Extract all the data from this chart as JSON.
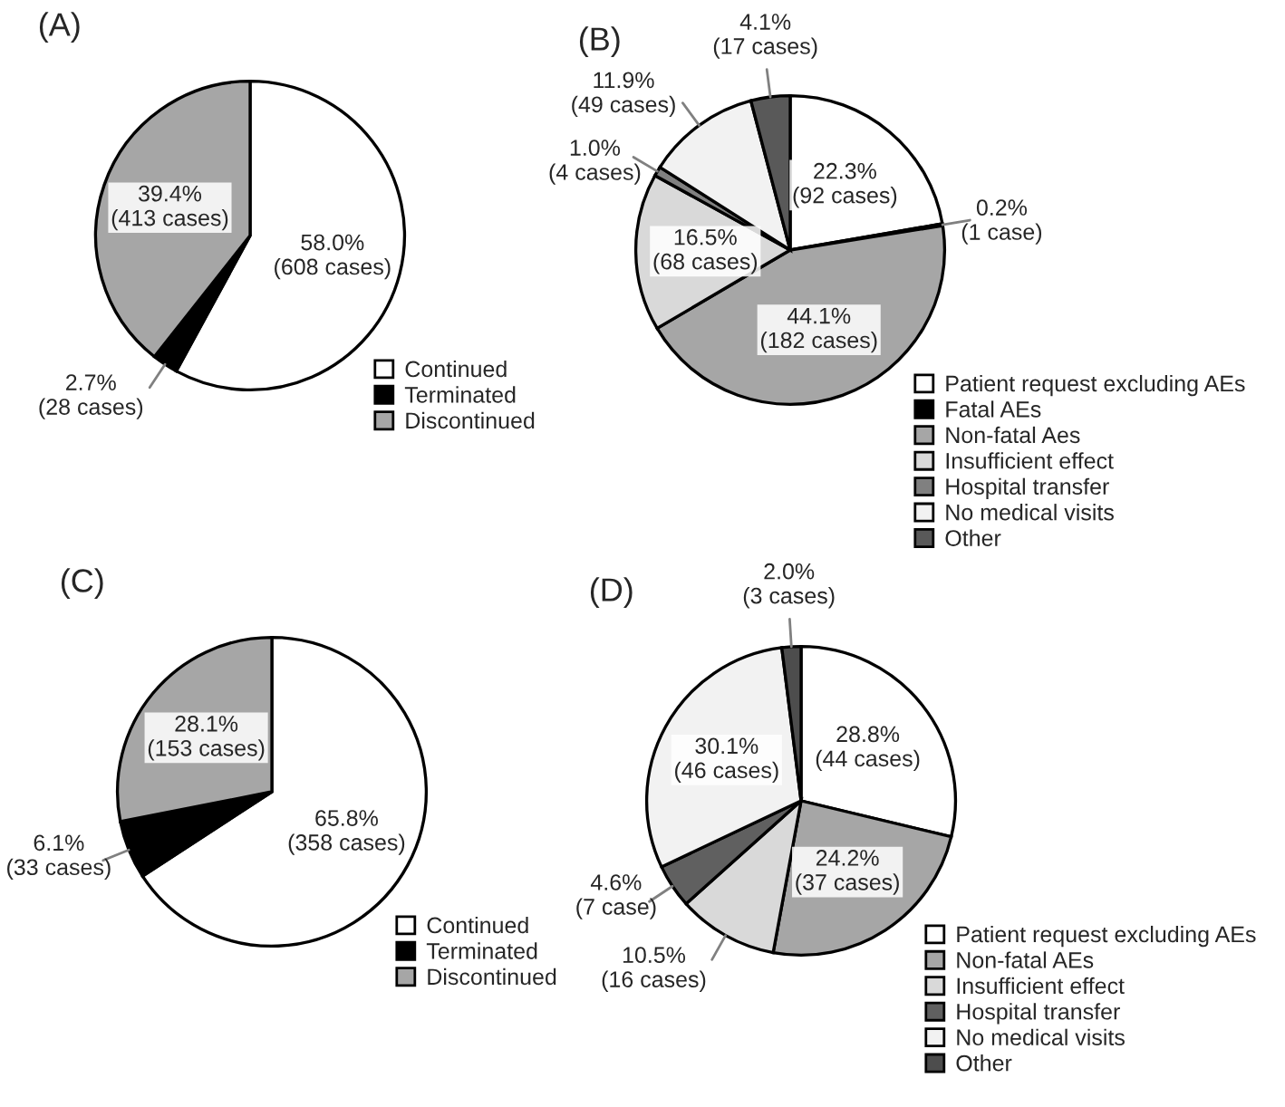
{
  "chart_data": [
    {
      "type": "pie",
      "title": "(A)",
      "categories": [
        "Continued",
        "Terminated",
        "Discontinued"
      ],
      "values": [
        58.0,
        2.7,
        39.4
      ],
      "colors": [
        "#ffffff",
        "#000000",
        "#a6a6a6"
      ],
      "value_labels": [
        "58.0%\n(608 cases)",
        "2.7%\n(28 cases)",
        "39.4%\n(413 cases)"
      ],
      "legend": "bottom right"
    },
    {
      "type": "pie",
      "title": "(B)",
      "categories": [
        "Patient request excluding AEs",
        "Fatal AEs",
        "Non-fatal Aes",
        "Insufficient effect",
        "Hospital transfer",
        "No medical visits",
        "Other"
      ],
      "values": [
        22.3,
        0.2,
        44.1,
        16.5,
        1.0,
        11.9,
        4.1
      ],
      "colors": [
        "#ffffff",
        "#000000",
        "#a6a6a6",
        "#d9d9d9",
        "#808080",
        "#f2f2f2",
        "#595959"
      ],
      "value_labels": [
        "22.3%\n(92 cases)",
        "0.2%\n(1 case)",
        "44.1%\n(182 cases)",
        "16.5%\n(68 cases)",
        "1.0%\n(4 cases)",
        "11.9%\n(49 cases)",
        "4.1%\n(17 cases)"
      ],
      "legend": "bottom right"
    },
    {
      "type": "pie",
      "title": "(C)",
      "categories": [
        "Continued",
        "Terminated",
        "Discontinued"
      ],
      "values": [
        65.8,
        6.1,
        28.1
      ],
      "colors": [
        "#ffffff",
        "#000000",
        "#a6a6a6"
      ],
      "value_labels": [
        "65.8%\n(358 cases)",
        "6.1%\n(33 cases)",
        "28.1%\n(153 cases)"
      ],
      "legend": "bottom right"
    },
    {
      "type": "pie",
      "title": "(D)",
      "categories": [
        "Patient request excluding AEs",
        "Non-fatal AEs",
        "Insufficient effect",
        "Hospital transfer",
        "No medical visits",
        "Other"
      ],
      "values": [
        28.8,
        24.2,
        10.5,
        4.6,
        30.1,
        2.0
      ],
      "colors": [
        "#ffffff",
        "#a6a6a6",
        "#d9d9d9",
        "#606060",
        "#f2f2f2",
        "#4d4d4d"
      ],
      "value_labels": [
        "28.8%\n(44 cases)",
        "24.2%\n(37 cases)",
        "10.5%\n(16 cases)",
        "4.6%\n(7 case)",
        "30.1%\n(46 cases)",
        "2.0%\n(3 cases)"
      ],
      "legend": "bottom right"
    }
  ]
}
